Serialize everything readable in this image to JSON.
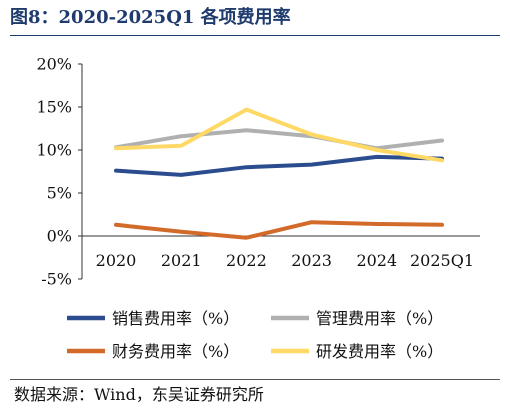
{
  "title": "图8：2020-2025Q1 各项费用率",
  "source": "数据来源：Wind，东吴证券研究所",
  "chart_data": {
    "type": "line",
    "x": [
      "2020",
      "2021",
      "2022",
      "2023",
      "2024",
      "2025Q1"
    ],
    "yticks": [
      "20%",
      "15%",
      "10%",
      "5%",
      "0%",
      "-5%"
    ],
    "ylim": [
      -5,
      20
    ],
    "legend": "bottom",
    "grid": false,
    "series": [
      {
        "name": "销售费用率（%）",
        "color": "#2b4c8e",
        "values": [
          7.6,
          7.1,
          8.0,
          8.3,
          9.2,
          9.0
        ]
      },
      {
        "name": "管理费用率（%）",
        "color": "#b0b0b0",
        "values": [
          10.3,
          11.6,
          12.3,
          11.6,
          10.2,
          11.1
        ]
      },
      {
        "name": "财务费用率（%）",
        "color": "#d26a2a",
        "values": [
          1.3,
          0.5,
          -0.2,
          1.6,
          1.4,
          1.3
        ]
      },
      {
        "name": "研发费用率（%）",
        "color": "#ffd966",
        "values": [
          10.2,
          10.5,
          14.7,
          11.8,
          10.0,
          8.8
        ]
      }
    ]
  }
}
